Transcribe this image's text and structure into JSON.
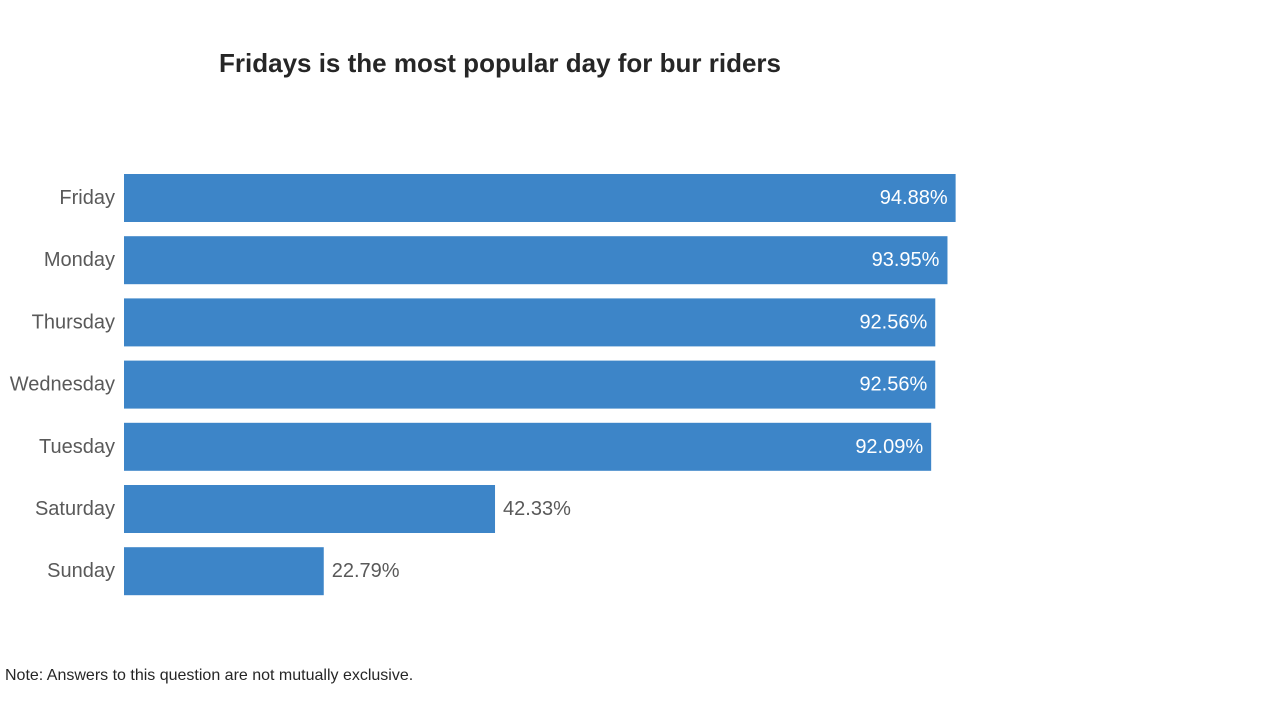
{
  "chart_data": {
    "type": "bar",
    "orientation": "horizontal",
    "title": "Fridays is the most popular day for bur riders",
    "categories": [
      "Friday",
      "Monday",
      "Thursday",
      "Wednesday",
      "Tuesday",
      "Saturday",
      "Sunday"
    ],
    "values": [
      94.88,
      93.95,
      92.56,
      92.56,
      92.09,
      42.33,
      22.79
    ],
    "value_labels": [
      "94.88%",
      "93.95%",
      "92.56%",
      "92.56%",
      "92.09%",
      "42.33%",
      "22.79%"
    ],
    "unit": "%",
    "xlim": [
      0,
      100
    ],
    "grid": false,
    "legend": "none",
    "bar_color": "#3D85C8",
    "note": "Note: Answers to this question are not mutually exclusive."
  }
}
